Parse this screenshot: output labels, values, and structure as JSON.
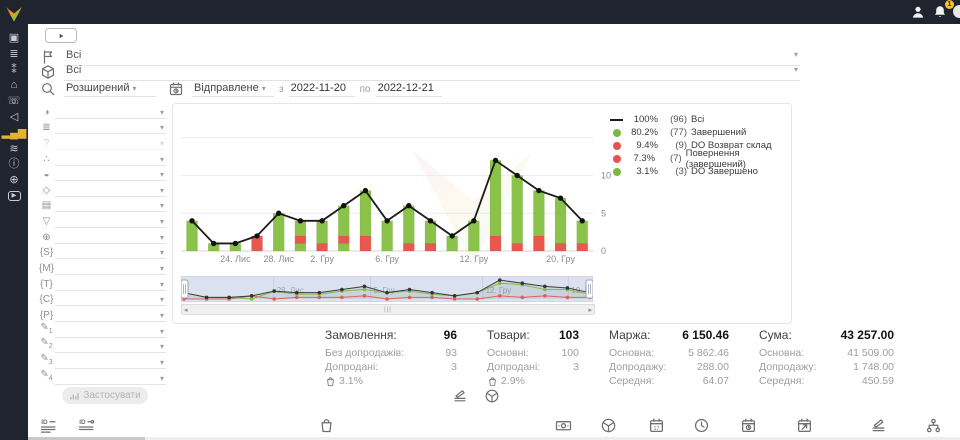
{
  "topbar": {
    "notification_count": "1"
  },
  "sidebar": {
    "icons": [
      {
        "name": "dashboard",
        "glyph": "▣"
      },
      {
        "name": "orders",
        "glyph": "≣"
      },
      {
        "name": "users",
        "glyph": "⁑"
      },
      {
        "name": "shop",
        "glyph": "⌂"
      },
      {
        "name": "calls",
        "glyph": "☏"
      },
      {
        "name": "announcements",
        "glyph": "◁"
      },
      {
        "name": "analytics",
        "glyph": "▂▄▆",
        "active": true
      },
      {
        "name": "settings",
        "glyph": "≋"
      },
      {
        "name": "info",
        "glyph": "ⓘ"
      },
      {
        "name": "integrations",
        "glyph": "⊕"
      },
      {
        "name": "video-help",
        "glyph": "▶",
        "boxed": true
      }
    ]
  },
  "filters": {
    "row1": {
      "value": "Всі"
    },
    "row2": {
      "value": "Всі"
    },
    "advanced_label": "Розширений",
    "date_type_label": "Відправлене",
    "from_label": "з",
    "date_from": "2022-11-20",
    "to_label": "по",
    "date_to": "2022-12-21",
    "apply_label": "Застосувати",
    "left_rows": [
      {
        "name": "source",
        "glyph": "◑"
      },
      {
        "name": "status-group",
        "glyph": "≣"
      },
      {
        "name": "help",
        "glyph": "?",
        "disabled": true
      },
      {
        "name": "category",
        "glyph": "∴"
      },
      {
        "name": "manager",
        "glyph": "◒"
      },
      {
        "name": "product",
        "glyph": "◇"
      },
      {
        "name": "payment",
        "glyph": "▤"
      },
      {
        "name": "funnel",
        "glyph": "▽"
      },
      {
        "name": "site",
        "glyph": "⊕"
      },
      {
        "name": "utm-s",
        "glyph": "{S}"
      },
      {
        "name": "utm-m",
        "glyph": "{M}"
      },
      {
        "name": "utm-t",
        "glyph": "{T}"
      },
      {
        "name": "utm-c",
        "glyph": "{C}"
      },
      {
        "name": "utm-p",
        "glyph": "{P}"
      },
      {
        "name": "custom-1",
        "glyph": "✎",
        "sub": "1"
      },
      {
        "name": "custom-2",
        "glyph": "✎",
        "sub": "2"
      },
      {
        "name": "custom-3",
        "glyph": "✎",
        "sub": "3"
      },
      {
        "name": "custom-4",
        "glyph": "✎",
        "sub": "4"
      }
    ]
  },
  "chart_data": {
    "type": "bar",
    "stacked": true,
    "line_series_name": "Всі",
    "colors": {
      "green": "#8bc34a",
      "red": "#e8584f",
      "line": "#1b1b1b"
    },
    "ylim": [
      0,
      15
    ],
    "y_ticks": [
      0,
      5,
      10
    ],
    "bars": [
      {
        "segments": [
          [
            "green",
            4
          ]
        ]
      },
      {
        "segments": [
          [
            "green",
            1
          ]
        ]
      },
      {
        "segments": [
          [
            "green",
            1
          ]
        ]
      },
      {
        "segments": [
          [
            "red",
            2
          ]
        ]
      },
      {
        "segments": [
          [
            "green",
            5
          ]
        ]
      },
      {
        "segments": [
          [
            "green",
            1
          ],
          [
            "red",
            1
          ],
          [
            "green",
            2
          ]
        ]
      },
      {
        "segments": [
          [
            "red",
            1
          ],
          [
            "green",
            3
          ]
        ]
      },
      {
        "segments": [
          [
            "green",
            1
          ],
          [
            "red",
            1
          ],
          [
            "green",
            4
          ]
        ]
      },
      {
        "segments": [
          [
            "red",
            2
          ],
          [
            "green",
            6
          ]
        ]
      },
      {
        "segments": [
          [
            "green",
            4
          ]
        ]
      },
      {
        "segments": [
          [
            "red",
            1
          ],
          [
            "green",
            5
          ]
        ]
      },
      {
        "segments": [
          [
            "red",
            1
          ],
          [
            "green",
            3
          ]
        ]
      },
      {
        "segments": [
          [
            "green",
            2
          ]
        ]
      },
      {
        "segments": [
          [
            "green",
            4
          ]
        ]
      },
      {
        "segments": [
          [
            "red",
            2
          ],
          [
            "green",
            10
          ]
        ]
      },
      {
        "segments": [
          [
            "red",
            1
          ],
          [
            "green",
            9
          ]
        ]
      },
      {
        "segments": [
          [
            "red",
            2
          ],
          [
            "green",
            6
          ]
        ]
      },
      {
        "segments": [
          [
            "red",
            1
          ],
          [
            "green",
            6
          ]
        ]
      },
      {
        "segments": [
          [
            "red",
            1
          ],
          [
            "green",
            3
          ]
        ]
      }
    ],
    "line_totals": [
      4,
      1,
      1,
      2,
      5,
      4,
      4,
      6,
      8,
      4,
      6,
      4,
      2,
      4,
      12,
      10,
      8,
      7,
      4
    ],
    "x_ticks": [
      {
        "label": "24. Лис",
        "bar": 2
      },
      {
        "label": "28. Лис",
        "bar": 4
      },
      {
        "label": "2. Гру",
        "bar": 6
      },
      {
        "label": "6. Гру",
        "bar": 9
      },
      {
        "label": "12. Гру",
        "bar": 13
      },
      {
        "label": "20. Гру",
        "bar": 17
      }
    ],
    "legend": [
      {
        "swatch": "line",
        "color": "#1b1b1b",
        "pct": "100%",
        "count": "(96)",
        "label": "Всі"
      },
      {
        "swatch": "dot",
        "color": "#7cb93e",
        "pct": "80.2%",
        "count": "(77)",
        "label": "Завершений"
      },
      {
        "swatch": "dot",
        "color": "#e25550",
        "pct": "9.4%",
        "count": "(9)",
        "label": "DO Возврат склад"
      },
      {
        "swatch": "dot",
        "color": "#e25550",
        "pct": "7.3%",
        "count": "(7)",
        "label": "Повернення (завершений)"
      },
      {
        "swatch": "dot",
        "color": "#7cb93e",
        "pct": "3.1%",
        "count": "(3)",
        "label": "DO Завершено"
      }
    ],
    "navigator": {
      "labels": [
        {
          "label": "28. Лис",
          "pos": 0.225
        },
        {
          "label": "5. Гру",
          "pos": 0.46
        },
        {
          "label": "12. Гру",
          "pos": 0.732
        },
        {
          "label": "19. Гру",
          "pos": 0.94
        }
      ]
    }
  },
  "stats": {
    "columns": [
      {
        "title": "Замовлення:",
        "value": "96",
        "rows": [
          [
            "Без допродажів:",
            "93"
          ],
          [
            "Допродані:",
            "3"
          ]
        ],
        "pct": "3.1%"
      },
      {
        "title": "Товари:",
        "value": "103",
        "rows": [
          [
            "Основні:",
            "100"
          ],
          [
            "Допродані:",
            "3"
          ]
        ],
        "pct": "2.9%"
      },
      {
        "title": "Маржа:",
        "value": "6 150.46",
        "rows": [
          [
            "Основна:",
            "5 862.46"
          ],
          [
            "Допродажу:",
            "288.00"
          ],
          [
            "Середня:",
            "64.07"
          ]
        ]
      },
      {
        "title": "Сума:",
        "value": "43 257.00",
        "rows": [
          [
            "Основна:",
            "41 509.00"
          ],
          [
            "Допродажу:",
            "1 748.00"
          ],
          [
            "Середня:",
            "450.59"
          ]
        ]
      }
    ]
  },
  "group_toggles": [
    {
      "name": "group-by-status",
      "icon": "layers"
    },
    {
      "name": "group-by-product",
      "icon": "package"
    }
  ],
  "footer": {
    "items": [
      {
        "name": "id-status",
        "icon": "idlist"
      },
      {
        "name": "id-codes",
        "icon": "idcodes"
      },
      {
        "name": "upsell",
        "icon": "bag"
      },
      {
        "name": "payment",
        "icon": "banknote"
      },
      {
        "name": "products",
        "icon": "package"
      },
      {
        "name": "date-created",
        "icon": "cal17"
      },
      {
        "name": "time",
        "icon": "clock"
      },
      {
        "name": "date-sent",
        "icon": "calclock"
      },
      {
        "name": "date-export",
        "icon": "calarrow"
      },
      {
        "name": "statuses",
        "icon": "layers"
      },
      {
        "name": "categories",
        "icon": "sitemap"
      }
    ]
  }
}
